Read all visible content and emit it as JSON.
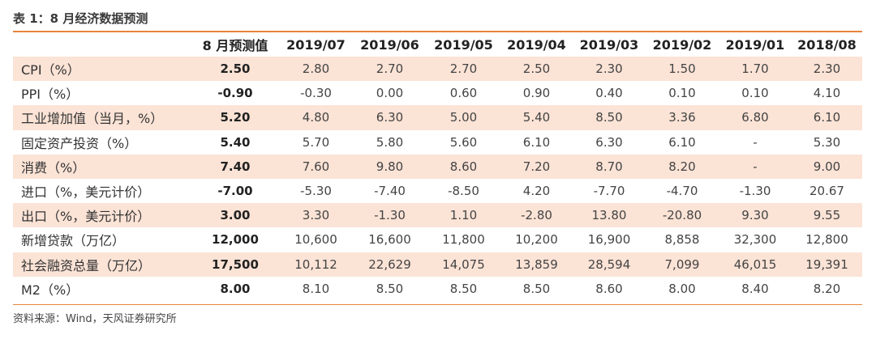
{
  "title": "表 1：8 月经济数据预测",
  "columns": [
    "",
    "8 月预测值",
    "2019/07",
    "2019/06",
    "2019/05",
    "2019/04",
    "2019/03",
    "2019/02",
    "2019/01",
    "2018/08"
  ],
  "rows": [
    {
      "label": "CPI（%）",
      "values": [
        "2.50",
        "2.80",
        "2.70",
        "2.70",
        "2.50",
        "2.30",
        "1.50",
        "1.70",
        "2.30"
      ]
    },
    {
      "label": "PPI（%）",
      "values": [
        "-0.90",
        "-0.30",
        "0.00",
        "0.60",
        "0.90",
        "0.40",
        "0.10",
        "0.10",
        "4.10"
      ]
    },
    {
      "label": "工业增加值（当月，%）",
      "values": [
        "5.20",
        "4.80",
        "6.30",
        "5.00",
        "5.40",
        "8.50",
        "3.36",
        "6.80",
        "6.10"
      ]
    },
    {
      "label": "固定资产投资（%）",
      "values": [
        "5.40",
        "5.70",
        "5.80",
        "5.60",
        "6.10",
        "6.30",
        "6.10",
        "-",
        "5.30"
      ]
    },
    {
      "label": "消费（%）",
      "values": [
        "7.40",
        "7.60",
        "9.80",
        "8.60",
        "7.20",
        "8.70",
        "8.20",
        "-",
        "9.00"
      ]
    },
    {
      "label": "进口（%，美元计价）",
      "values": [
        "-7.00",
        "-5.30",
        "-7.40",
        "-8.50",
        "4.20",
        "-7.70",
        "-4.70",
        "-1.30",
        "20.67"
      ]
    },
    {
      "label": "出口（%，美元计价）",
      "values": [
        "3.00",
        "3.30",
        "-1.30",
        "1.10",
        "-2.80",
        "13.80",
        "-20.80",
        "9.30",
        "9.55"
      ]
    },
    {
      "label": "新增贷款（万亿）",
      "values": [
        "12,000",
        "10,600",
        "16,600",
        "11,800",
        "10,200",
        "16,900",
        "8,858",
        "32,300",
        "12,800"
      ]
    },
    {
      "label": "社会融资总量（万亿）",
      "values": [
        "17,500",
        "10,112",
        "22,629",
        "14,075",
        "13,859",
        "28,594",
        "7,099",
        "46,015",
        "19,391"
      ]
    },
    {
      "label": "M2（%）",
      "values": [
        "8.00",
        "8.10",
        "8.50",
        "8.50",
        "8.50",
        "8.60",
        "8.00",
        "8.40",
        "8.20"
      ]
    }
  ],
  "source": "资料来源：Wind，天风证券研究所",
  "colors": {
    "accent": "#e8843b",
    "row_shade": "#fbe3d6"
  }
}
